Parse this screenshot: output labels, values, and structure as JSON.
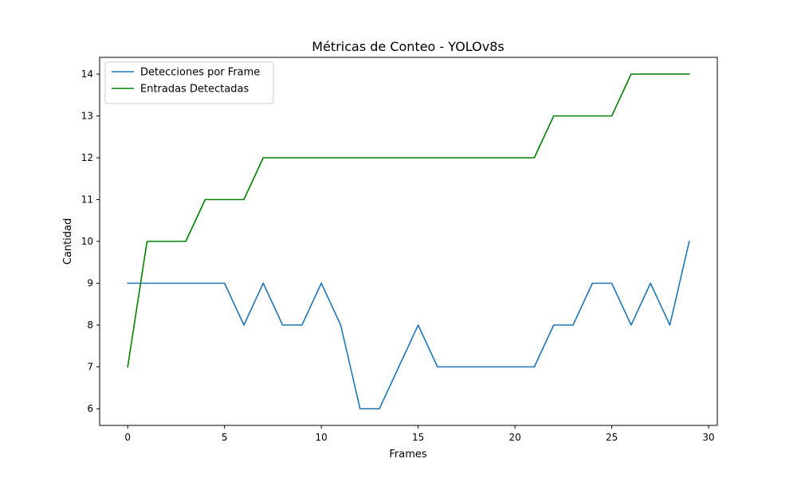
{
  "chart_data": {
    "type": "line",
    "title": "Métricas de Conteo - YOLOv8s",
    "xlabel": "Frames",
    "ylabel": "Cantidad",
    "x": [
      0,
      1,
      2,
      3,
      4,
      5,
      6,
      7,
      8,
      9,
      10,
      11,
      12,
      13,
      14,
      15,
      16,
      17,
      18,
      19,
      20,
      21,
      22,
      23,
      24,
      25,
      26,
      27,
      28,
      29
    ],
    "series": [
      {
        "name": "Detecciones por Frame",
        "color": "#1f77b4",
        "values": [
          9,
          9,
          9,
          9,
          9,
          9,
          8,
          9,
          8,
          8,
          9,
          8,
          6,
          6,
          7,
          8,
          7,
          7,
          7,
          7,
          7,
          7,
          8,
          8,
          9,
          9,
          8,
          9,
          8,
          10
        ]
      },
      {
        "name": "Entradas Detectadas",
        "color": "#008000",
        "values": [
          7,
          10,
          10,
          10,
          11,
          11,
          11,
          12,
          12,
          12,
          12,
          12,
          12,
          12,
          12,
          12,
          12,
          12,
          12,
          12,
          12,
          12,
          13,
          13,
          13,
          13,
          14,
          14,
          14,
          14
        ]
      }
    ],
    "xlim": [
      -1.45,
      30.45
    ],
    "ylim": [
      5.6,
      14.4
    ],
    "x_ticks": [
      "0",
      "5",
      "10",
      "15",
      "20",
      "25",
      "30"
    ],
    "y_ticks": [
      "6",
      "7",
      "8",
      "9",
      "10",
      "11",
      "12",
      "13",
      "14"
    ],
    "grid": false,
    "legend_position": "upper-left"
  }
}
